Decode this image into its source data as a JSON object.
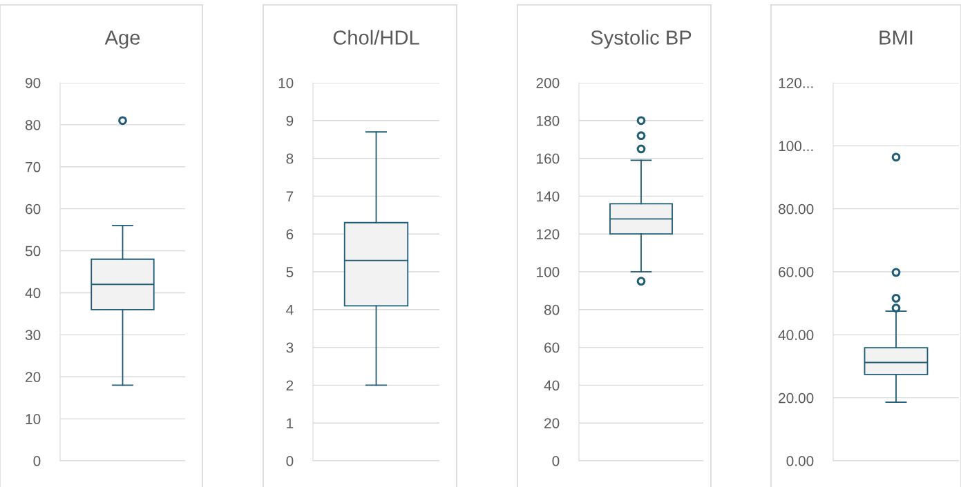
{
  "chart_data": [
    {
      "type": "box",
      "title": "Age",
      "categories": [
        null
      ],
      "color": "#1f5c78",
      "grid": "y",
      "marker": "circle",
      "boxes": [
        {
          "low": 18,
          "q1": 36,
          "median": 42,
          "q3": 48,
          "high": 56,
          "outliers": [
            81
          ]
        }
      ],
      "ylim": [
        0,
        90
      ],
      "yticks": [
        0,
        10,
        20,
        30,
        40,
        50,
        60,
        70,
        80,
        90
      ]
    },
    {
      "type": "box",
      "title": "Chol/HDL",
      "categories": [
        null
      ],
      "color": "#1f5c78",
      "grid": "y",
      "marker": "circle",
      "boxes": [
        {
          "low": 2.0,
          "q1": 4.1,
          "median": 5.3,
          "q3": 6.3,
          "high": 8.7
        }
      ],
      "ylim": [
        0,
        10
      ],
      "yticks": [
        0,
        1,
        2,
        3,
        4,
        5,
        6,
        7,
        8,
        9,
        10
      ]
    },
    {
      "type": "box",
      "title": "Systolic BP",
      "categories": [
        null
      ],
      "color": "#1f5c78",
      "grid": "y",
      "marker": "circle",
      "boxes": [
        {
          "low": 100,
          "q1": 120,
          "median": 128,
          "q3": 136,
          "high": 159,
          "outliers": [
            95,
            165,
            172,
            180
          ]
        }
      ],
      "ylim": [
        0,
        200
      ],
      "yticks": [
        0,
        20,
        40,
        60,
        80,
        100,
        120,
        140,
        160,
        180,
        200
      ]
    },
    {
      "type": "box",
      "title": "BMI",
      "categories": [
        null
      ],
      "color": "#1f5c78",
      "grid": "y",
      "marker": "circle",
      "boxes": [
        {
          "low": 18.6,
          "q1": 27.4,
          "median": 31.2,
          "q3": 35.9,
          "high": 47.5,
          "outliers": [
            48.5,
            51.6,
            59.8,
            96.4
          ]
        }
      ],
      "ylim": [
        0,
        120
      ],
      "yticks": [
        {
          "value": 0,
          "label": "0.00"
        },
        {
          "value": 20,
          "label": "20.00"
        },
        {
          "value": 40,
          "label": "40.00"
        },
        {
          "value": 60,
          "label": "60.00"
        },
        {
          "value": 80,
          "label": "80.00"
        },
        {
          "value": 100,
          "label": "100..."
        },
        {
          "value": 120,
          "label": "120..."
        }
      ]
    }
  ]
}
